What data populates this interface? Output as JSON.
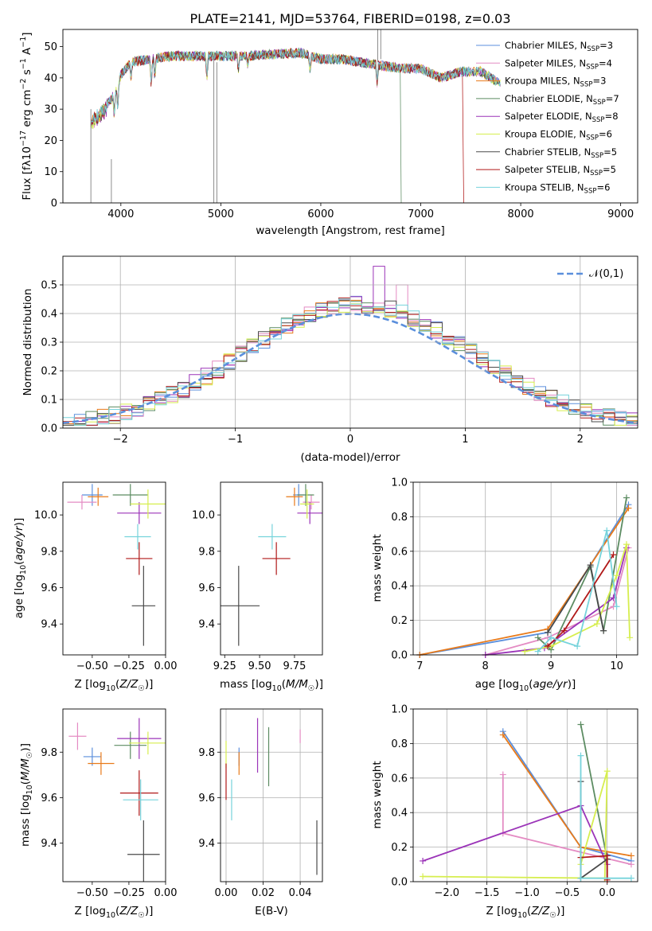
{
  "title": "PLATE=2141, MJD=53764, FIBERID=0198, z=0.03",
  "colors": {
    "Chabrier MILES": "#5b8fdc",
    "Salpeter MILES": "#e48bc3",
    "Kroupa MILES": "#e87a1a",
    "Chabrier ELODIE": "#5c8c62",
    "Salpeter ELODIE": "#9b34b8",
    "Kroupa ELODIE": "#d6ee4e",
    "Chabrier STELIB": "#4a4a4a",
    "Salpeter STELIB": "#b01818",
    "Kroupa STELIB": "#76d3db"
  },
  "chart_data": [
    {
      "id": "spectrum",
      "type": "line",
      "title": "PLATE=2141, MJD=53764, FIBERID=0198, z=0.03",
      "xlabel": "wavelength [Angstrom, rest frame]",
      "ylabel_parts": [
        "Flux [f",
        "λ",
        "10",
        "−17",
        " erg cm",
        "−2",
        " s",
        "−1",
        " A",
        "−1",
        "]"
      ],
      "xlim": [
        3420,
        9170
      ],
      "ylim": [
        0,
        55.5
      ],
      "xticks": [
        4000,
        5000,
        6000,
        7000,
        8000,
        9000
      ],
      "yticks": [
        0,
        10,
        20,
        30,
        40,
        50
      ],
      "grid": false,
      "legend_position": "upper right",
      "legend": [
        {
          "name": "Chabrier MILES",
          "n": "3"
        },
        {
          "name": "Salpeter MILES",
          "n": "4"
        },
        {
          "name": "Kroupa MILES",
          "n": "3"
        },
        {
          "name": "Chabrier ELODIE",
          "n": "7"
        },
        {
          "name": "Salpeter ELODIE",
          "n": "8"
        },
        {
          "name": "Kroupa ELODIE",
          "n": "6"
        },
        {
          "name": "Chabrier STELIB",
          "n": "5"
        },
        {
          "name": "Salpeter STELIB",
          "n": "5"
        },
        {
          "name": "Kroupa STELIB",
          "n": "6"
        }
      ],
      "continuum": [
        [
          3700,
          27
        ],
        [
          3800,
          30
        ],
        [
          3900,
          33
        ],
        [
          3950,
          36
        ],
        [
          4000,
          41
        ],
        [
          4100,
          45
        ],
        [
          4300,
          46
        ],
        [
          4500,
          47
        ],
        [
          4700,
          47
        ],
        [
          5000,
          47
        ],
        [
          5200,
          47
        ],
        [
          5500,
          47.5
        ],
        [
          5800,
          48
        ],
        [
          6000,
          46
        ],
        [
          6200,
          46
        ],
        [
          6500,
          44.5
        ],
        [
          6800,
          43
        ],
        [
          7000,
          43
        ],
        [
          7200,
          40
        ],
        [
          7400,
          42
        ],
        [
          7600,
          42
        ],
        [
          7800,
          38
        ]
      ]
    },
    {
      "id": "residual-histogram",
      "type": "step",
      "xlabel": "(data-model)/error",
      "ylabel": "Normed distribution",
      "xlim": [
        -2.5,
        2.5
      ],
      "ylim": [
        0,
        0.6
      ],
      "xticks": [
        -2,
        -1,
        0,
        1,
        2
      ],
      "yticks": [
        0.0,
        0.1,
        0.2,
        0.3,
        0.4,
        0.5
      ],
      "grid": true,
      "legend": "𝒩(0,1)",
      "legend_position": "upper right",
      "bin_width": 0.1,
      "bin_start": -2.5
    },
    {
      "id": "age-vs-metallicity",
      "type": "errorbar",
      "xlabel": "Z [log10(Z/Z☉)]",
      "ylabel": "age  [log10(age/yr)]",
      "xlim": [
        -0.7,
        0.0
      ],
      "ylim": [
        9.23,
        10.18
      ],
      "xticks": [
        -0.5,
        -0.25,
        0.0
      ],
      "yticks": [
        9.4,
        9.6,
        9.8,
        10.0
      ],
      "grid": false,
      "points": [
        {
          "series": "Chabrier MILES",
          "x": -0.5,
          "xerr": 0.07,
          "y": 10.11,
          "yerr": 0.06
        },
        {
          "series": "Salpeter MILES",
          "x": -0.57,
          "xerr": 0.1,
          "y": 10.07,
          "yerr": 0.04
        },
        {
          "series": "Kroupa MILES",
          "x": -0.46,
          "xerr": 0.07,
          "y": 10.1,
          "yerr": 0.05
        },
        {
          "series": "Chabrier ELODIE",
          "x": -0.24,
          "xerr": 0.12,
          "y": 10.11,
          "yerr": 0.06
        },
        {
          "series": "Salpeter ELODIE",
          "x": -0.18,
          "xerr": 0.15,
          "y": 10.01,
          "yerr": 0.06
        },
        {
          "series": "Kroupa ELODIE",
          "x": -0.12,
          "xerr": 0.12,
          "y": 10.06,
          "yerr": 0.08
        },
        {
          "series": "Chabrier STELIB",
          "x": -0.15,
          "xerr": 0.08,
          "y": 9.5,
          "yerr": 0.22
        },
        {
          "series": "Salpeter STELIB",
          "x": -0.18,
          "xerr": 0.09,
          "y": 9.76,
          "yerr": 0.09
        },
        {
          "series": "Kroupa STELIB",
          "x": -0.19,
          "xerr": 0.09,
          "y": 9.88,
          "yerr": 0.07
        }
      ]
    },
    {
      "id": "age-vs-mass",
      "type": "errorbar",
      "xlabel": "mass [log10(M/M☉)]",
      "xlim": [
        9.22,
        9.95
      ],
      "ylim": [
        9.23,
        10.18
      ],
      "xticks": [
        9.25,
        9.5,
        9.75
      ],
      "yticks": [
        9.4,
        9.6,
        9.8,
        10.0
      ],
      "grid": false,
      "points": [
        {
          "series": "Chabrier MILES",
          "x": 9.78,
          "xerr": 0.04,
          "y": 10.11,
          "yerr": 0.06
        },
        {
          "series": "Salpeter MILES",
          "x": 9.87,
          "xerr": 0.06,
          "y": 10.07,
          "yerr": 0.04
        },
        {
          "series": "Kroupa MILES",
          "x": 9.75,
          "xerr": 0.06,
          "y": 10.1,
          "yerr": 0.05
        },
        {
          "series": "Chabrier ELODIE",
          "x": 9.83,
          "xerr": 0.06,
          "y": 10.11,
          "yerr": 0.06
        },
        {
          "series": "Salpeter ELODIE",
          "x": 9.86,
          "xerr": 0.09,
          "y": 10.01,
          "yerr": 0.06
        },
        {
          "series": "Kroupa ELODIE",
          "x": 9.84,
          "xerr": 0.05,
          "y": 10.06,
          "yerr": 0.08
        },
        {
          "series": "Chabrier STELIB",
          "x": 9.35,
          "xerr": 0.15,
          "y": 9.5,
          "yerr": 0.22
        },
        {
          "series": "Salpeter STELIB",
          "x": 9.62,
          "xerr": 0.1,
          "y": 9.76,
          "yerr": 0.09
        },
        {
          "series": "Kroupa STELIB",
          "x": 9.59,
          "xerr": 0.1,
          "y": 9.88,
          "yerr": 0.07
        }
      ]
    },
    {
      "id": "mass-weight-vs-age",
      "type": "line",
      "xlabel": "age  [log10(age/yr)]",
      "ylabel": "mass weight",
      "xlim": [
        6.9,
        10.32
      ],
      "ylim": [
        0,
        1.0
      ],
      "xticks": [
        7,
        8,
        9,
        10
      ],
      "yticks": [
        0.0,
        0.2,
        0.4,
        0.6,
        0.8,
        1.0
      ],
      "grid": true,
      "series": [
        {
          "name": "Chabrier MILES",
          "x": [
            7.0,
            8.95,
            10.18
          ],
          "y": [
            0.0,
            0.13,
            0.87
          ]
        },
        {
          "name": "Salpeter MILES",
          "x": [
            8.0,
            8.95,
            9.95,
            10.18
          ],
          "y": [
            0.0,
            0.1,
            0.28,
            0.62
          ]
        },
        {
          "name": "Kroupa MILES",
          "x": [
            7.0,
            8.95,
            10.18
          ],
          "y": [
            0.0,
            0.15,
            0.85
          ]
        },
        {
          "name": "Chabrier ELODIE",
          "x": [
            8.8,
            9.0,
            9.6,
            9.8,
            10.15
          ],
          "y": [
            0.1,
            0.03,
            0.51,
            0.14,
            0.91
          ]
        },
        {
          "name": "Salpeter ELODIE",
          "x": [
            8.0,
            8.9,
            9.95,
            10.15
          ],
          "y": [
            0.0,
            0.04,
            0.33,
            0.62
          ]
        },
        {
          "name": "Kroupa ELODIE",
          "x": [
            8.6,
            9.0,
            9.7,
            10.0,
            10.15,
            10.2
          ],
          "y": [
            0.02,
            0.05,
            0.18,
            0.46,
            0.64,
            0.1
          ]
        },
        {
          "name": "Chabrier STELIB",
          "x": [
            8.95,
            9.6,
            9.8
          ],
          "y": [
            0.13,
            0.52,
            0.14
          ]
        },
        {
          "name": "Salpeter STELIB",
          "x": [
            8.95,
            9.2,
            9.95
          ],
          "y": [
            0.05,
            0.14,
            0.58
          ]
        },
        {
          "name": "Kroupa STELIB",
          "x": [
            8.8,
            9.0,
            9.4,
            9.85,
            10.0
          ],
          "y": [
            0.02,
            0.1,
            0.05,
            0.72,
            0.28
          ]
        }
      ]
    },
    {
      "id": "mass-vs-metallicity",
      "type": "errorbar",
      "xlabel": "Z [log10(Z/Z☉)]",
      "ylabel": "mass [log10(M/M☉)]",
      "xlim": [
        -0.7,
        0.0
      ],
      "ylim": [
        9.23,
        9.99
      ],
      "xticks": [
        -0.5,
        -0.25,
        0.0
      ],
      "yticks": [
        9.4,
        9.6,
        9.8
      ],
      "grid": false,
      "points": [
        {
          "series": "Chabrier MILES",
          "x": -0.5,
          "xerr": 0.06,
          "y": 9.78,
          "yerr": 0.04
        },
        {
          "series": "Salpeter MILES",
          "x": -0.6,
          "xerr": 0.06,
          "y": 9.87,
          "yerr": 0.06
        },
        {
          "series": "Kroupa MILES",
          "x": -0.44,
          "xerr": 0.09,
          "y": 9.75,
          "yerr": 0.05
        },
        {
          "series": "Chabrier ELODIE",
          "x": -0.24,
          "xerr": 0.11,
          "y": 9.83,
          "yerr": 0.06
        },
        {
          "series": "Salpeter ELODIE",
          "x": -0.18,
          "xerr": 0.15,
          "y": 9.86,
          "yerr": 0.09
        },
        {
          "series": "Kroupa ELODIE",
          "x": -0.12,
          "xerr": 0.13,
          "y": 9.84,
          "yerr": 0.05
        },
        {
          "series": "Chabrier STELIB",
          "x": -0.15,
          "xerr": 0.11,
          "y": 9.35,
          "yerr": 0.15
        },
        {
          "series": "Salpeter STELIB",
          "x": -0.18,
          "xerr": 0.13,
          "y": 9.62,
          "yerr": 0.1
        },
        {
          "series": "Kroupa STELIB",
          "x": -0.17,
          "xerr": 0.12,
          "y": 9.59,
          "yerr": 0.09
        }
      ]
    },
    {
      "id": "mass-vs-ebv",
      "type": "errorbar",
      "xlabel": "E(B-V)",
      "xlim": [
        -0.003,
        0.052
      ],
      "ylim": [
        9.23,
        9.99
      ],
      "xticks": [
        0.0,
        0.02,
        0.04
      ],
      "yticks": [
        9.4,
        9.6,
        9.8
      ],
      "grid": true,
      "points": [
        {
          "series": "Chabrier MILES",
          "x": 0.007,
          "xerr": 0.0,
          "y": 9.78,
          "yerr": 0.04
        },
        {
          "series": "Salpeter MILES",
          "x": 0.04,
          "xerr": 0.0,
          "y": 9.87,
          "yerr": 0.03
        },
        {
          "series": "Kroupa MILES",
          "x": 0.007,
          "xerr": 0.0,
          "y": 9.75,
          "yerr": 0.05
        },
        {
          "series": "Chabrier ELODIE",
          "x": 0.023,
          "xerr": 0.0,
          "y": 9.78,
          "yerr": 0.13
        },
        {
          "series": "Salpeter ELODIE",
          "x": 0.017,
          "xerr": 0.0,
          "y": 9.83,
          "yerr": 0.12
        },
        {
          "series": "Kroupa ELODIE",
          "x": 0.0,
          "xerr": 0.0,
          "y": 9.79,
          "yerr": 0.06
        },
        {
          "series": "Chabrier STELIB",
          "x": 0.049,
          "xerr": 0.0,
          "y": 9.38,
          "yerr": 0.12
        },
        {
          "series": "Salpeter STELIB",
          "x": 0.0,
          "xerr": 0.0,
          "y": 9.67,
          "yerr": 0.08
        },
        {
          "series": "Kroupa STELIB",
          "x": 0.003,
          "xerr": 0.0,
          "y": 9.59,
          "yerr": 0.09
        }
      ]
    },
    {
      "id": "mass-weight-vs-metallicity",
      "type": "line",
      "xlabel": "Z [log10(Z/Z☉)]",
      "ylabel": "mass weight",
      "xlim": [
        -2.42,
        0.38
      ],
      "ylim": [
        0,
        1.0
      ],
      "xticks": [
        -2.0,
        -1.5,
        -1.0,
        -0.5,
        0.0
      ],
      "yticks": [
        0.0,
        0.2,
        0.4,
        0.6,
        0.8,
        1.0
      ],
      "grid": true,
      "series": [
        {
          "name": "Chabrier MILES",
          "x": [
            -1.3,
            -0.33,
            0.3
          ],
          "y": [
            0.87,
            0.2,
            0.12
          ]
        },
        {
          "name": "Salpeter MILES",
          "x": [
            -1.3,
            -1.3,
            0.3
          ],
          "y": [
            0.62,
            0.28,
            0.1
          ]
        },
        {
          "name": "Kroupa MILES",
          "x": [
            -1.3,
            -0.33,
            0.3
          ],
          "y": [
            0.85,
            0.2,
            0.15
          ]
        },
        {
          "name": "Chabrier ELODIE",
          "x": [
            -0.33,
            0.0,
            0.0
          ],
          "y": [
            0.91,
            0.13,
            0.02
          ]
        },
        {
          "name": "Salpeter ELODIE",
          "x": [
            -2.3,
            -0.33,
            0.0
          ],
          "y": [
            0.12,
            0.44,
            0.1
          ]
        },
        {
          "name": "Kroupa ELODIE",
          "x": [
            -2.3,
            -0.03,
            0.0,
            -0.33
          ],
          "y": [
            0.03,
            0.02,
            0.64,
            0.1
          ]
        },
        {
          "name": "Chabrier STELIB",
          "x": [
            -0.33,
            -0.33,
            0.0
          ],
          "y": [
            0.58,
            0.02,
            0.13
          ]
        },
        {
          "name": "Salpeter STELIB",
          "x": [
            -0.33,
            0.0,
            0.0
          ],
          "y": [
            0.14,
            0.15,
            0.01
          ]
        },
        {
          "name": "Kroupa STELIB",
          "x": [
            -0.33,
            -0.33,
            0.3
          ],
          "y": [
            0.73,
            0.02,
            0.02
          ]
        }
      ]
    }
  ]
}
